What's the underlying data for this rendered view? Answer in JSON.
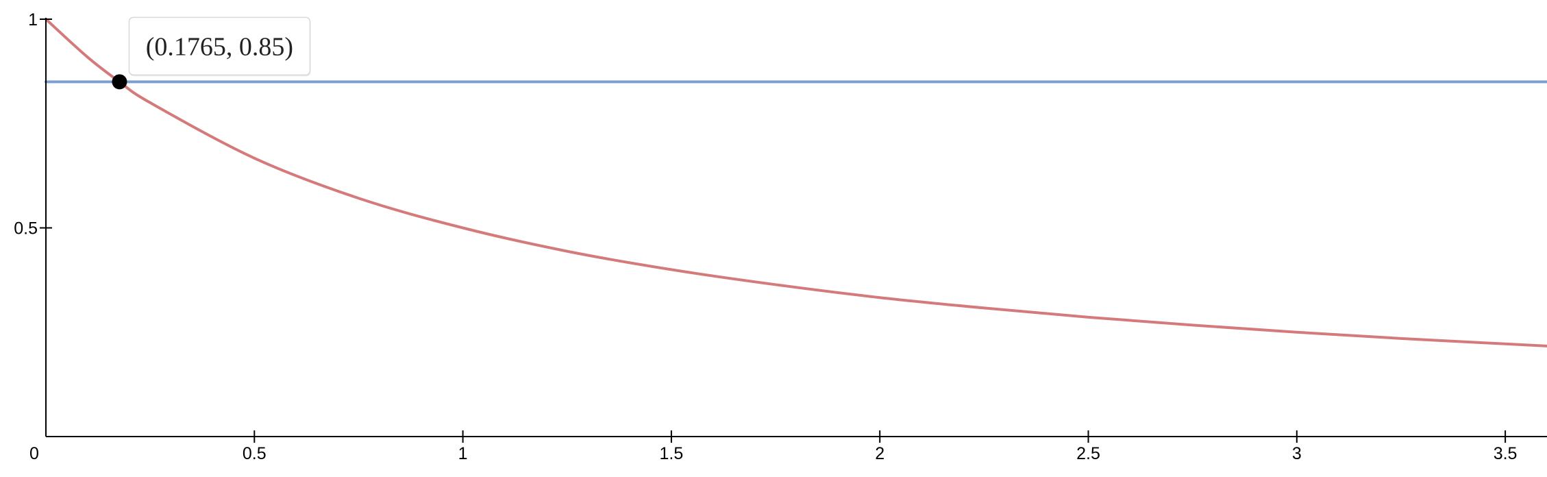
{
  "chart_data": {
    "type": "line",
    "title": "",
    "xlabel": "",
    "ylabel": "",
    "xlim": [
      0,
      3.6
    ],
    "ylim": [
      0,
      1
    ],
    "x_ticks": [
      {
        "value": 0,
        "label": "0"
      },
      {
        "value": 0.5,
        "label": "0.5"
      },
      {
        "value": 1,
        "label": "1"
      },
      {
        "value": 1.5,
        "label": "1.5"
      },
      {
        "value": 2,
        "label": "2"
      },
      {
        "value": 2.5,
        "label": "2.5"
      },
      {
        "value": 3,
        "label": "3"
      },
      {
        "value": 3.5,
        "label": "3.5"
      }
    ],
    "y_ticks": [
      {
        "value": 0.5,
        "label": "0.5"
      },
      {
        "value": 1,
        "label": "1"
      }
    ],
    "grid": false,
    "series": [
      {
        "color": "#d47a7a",
        "x": [
          0,
          0.1,
          0.1765,
          0.25,
          0.5,
          0.75,
          1,
          1.25,
          1.5,
          1.75,
          2,
          2.25,
          2.5,
          2.75,
          3,
          3.25,
          3.5,
          3.6
        ],
        "y": [
          1,
          0.909,
          0.85,
          0.8,
          0.667,
          0.571,
          0.5,
          0.444,
          0.4,
          0.364,
          0.333,
          0.308,
          0.286,
          0.267,
          0.25,
          0.235,
          0.222,
          0.217
        ]
      },
      {
        "color": "#7a9fd0",
        "x": [
          0,
          3.6
        ],
        "y": [
          0.85,
          0.85
        ]
      }
    ],
    "annotations": [
      {
        "x": 0.1765,
        "y": 0.85,
        "label": "(0.1765, 0.85)",
        "color": "#000000"
      }
    ]
  }
}
